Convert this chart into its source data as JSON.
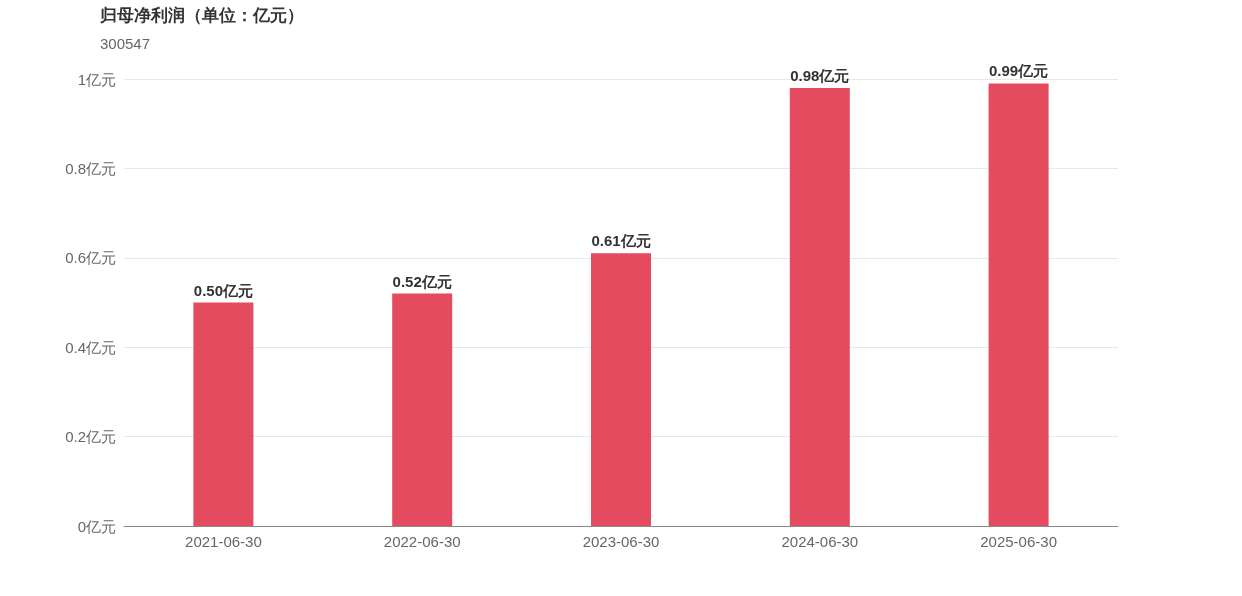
{
  "chart_data": {
    "type": "bar",
    "title": "归母净利润（单位：亿元）",
    "subtitle": "300547",
    "categories": [
      "2021-06-30",
      "2022-06-30",
      "2023-06-30",
      "2024-06-30",
      "2025-06-30"
    ],
    "values": [
      0.5,
      0.52,
      0.61,
      0.98,
      0.99
    ],
    "value_labels": [
      "0.50亿元",
      "0.52亿元",
      "0.61亿元",
      "0.98亿元",
      "0.99亿元"
    ],
    "color": "#e54b5e",
    "ylim": [
      0,
      1
    ],
    "yticks": [
      {
        "value": 0,
        "label": "0亿元"
      },
      {
        "value": 0.2,
        "label": "0.2亿元"
      },
      {
        "value": 0.4,
        "label": "0.4亿元"
      },
      {
        "value": 0.6,
        "label": "0.6亿元"
      },
      {
        "value": 0.8,
        "label": "0.8亿元"
      },
      {
        "value": 1,
        "label": "1亿元"
      }
    ],
    "grid": "y"
  }
}
